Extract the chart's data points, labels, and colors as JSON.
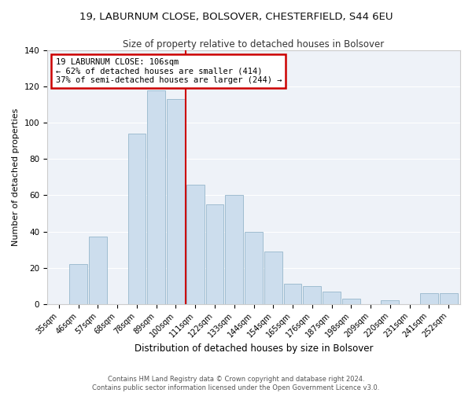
{
  "title1": "19, LABURNUM CLOSE, BOLSOVER, CHESTERFIELD, S44 6EU",
  "title2": "Size of property relative to detached houses in Bolsover",
  "xlabel": "Distribution of detached houses by size in Bolsover",
  "ylabel": "Number of detached properties",
  "bar_labels": [
    "35sqm",
    "46sqm",
    "57sqm",
    "68sqm",
    "78sqm",
    "89sqm",
    "100sqm",
    "111sqm",
    "122sqm",
    "133sqm",
    "144sqm",
    "154sqm",
    "165sqm",
    "176sqm",
    "187sqm",
    "198sqm",
    "209sqm",
    "220sqm",
    "231sqm",
    "241sqm",
    "252sqm"
  ],
  "bar_values": [
    0,
    22,
    37,
    0,
    94,
    118,
    113,
    66,
    55,
    60,
    40,
    29,
    11,
    10,
    7,
    3,
    0,
    2,
    0,
    6,
    6
  ],
  "bar_color": "#ccdded",
  "bar_edge_color": "#a0bdd0",
  "vline_x": 6.5,
  "vline_color": "#cc0000",
  "annotation_title": "19 LABURNUM CLOSE: 106sqm",
  "annotation_line1": "← 62% of detached houses are smaller (414)",
  "annotation_line2": "37% of semi-detached houses are larger (244) →",
  "annotation_box_facecolor": "#ffffff",
  "annotation_box_edgecolor": "#cc0000",
  "ylim": [
    0,
    140
  ],
  "yticks": [
    0,
    20,
    40,
    60,
    80,
    100,
    120,
    140
  ],
  "footer1": "Contains HM Land Registry data © Crown copyright and database right 2024.",
  "footer2": "Contains public sector information licensed under the Open Government Licence v3.0.",
  "bg_color": "#ffffff",
  "plot_bg_color": "#eef2f8"
}
